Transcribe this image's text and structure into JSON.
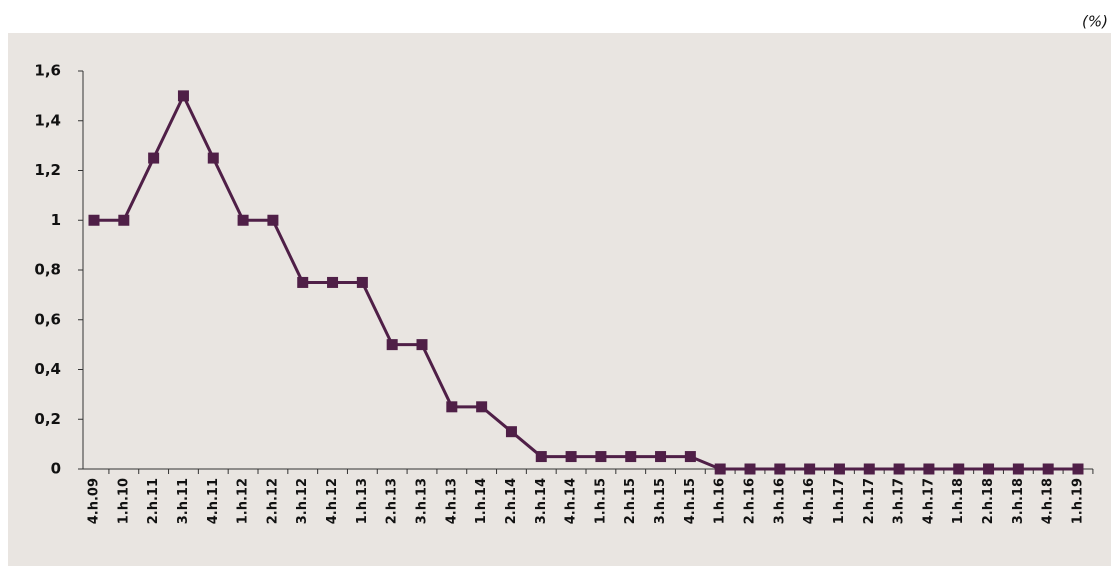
{
  "chart_data": {
    "type": "line",
    "unit": "(%)",
    "categories": [
      "4.h.09",
      "1.h.10",
      "2.h.11",
      "3.h.11",
      "4.h.11",
      "1.h.12",
      "2.h.12",
      "3.h.12",
      "4.h.12",
      "1.h.13",
      "2.h.13",
      "3.h.13",
      "4.h.13",
      "1.h.14",
      "2.h.14",
      "3.h.14",
      "4.h.14",
      "1.h.15",
      "2.h.15",
      "3.h.15",
      "4.h.15",
      "1.h.16",
      "2.h.16",
      "3.h.16",
      "4.h.16",
      "1.h.17",
      "2.h.17",
      "3.h.17",
      "4.h.17",
      "1.h.18",
      "2.h.18",
      "3.h.18",
      "4.h.18",
      "1.h.19"
    ],
    "values": [
      1,
      1,
      1.25,
      1.5,
      1.25,
      1,
      1,
      0.75,
      0.75,
      0.75,
      0.5,
      0.5,
      0.25,
      0.25,
      0.15,
      0.05,
      0.05,
      0.05,
      0.05,
      0.05,
      0.05,
      0,
      0,
      0,
      0,
      0,
      0,
      0,
      0,
      0,
      0,
      0,
      0,
      0
    ],
    "color": "#4f1f47",
    "ylim": [
      0,
      1.6
    ],
    "yticks": [
      0,
      {
        "value": 0.2,
        "label": "0,2"
      },
      {
        "value": 0.4,
        "label": "0,4"
      },
      {
        "value": 0.6,
        "label": "0,6"
      },
      {
        "value": 0.8,
        "label": "0,8"
      },
      1,
      {
        "value": 1.2,
        "label": "1,2"
      },
      {
        "value": 1.4,
        "label": "1,4"
      },
      {
        "value": 1.6,
        "label": "1,6"
      }
    ],
    "grid": false
  }
}
